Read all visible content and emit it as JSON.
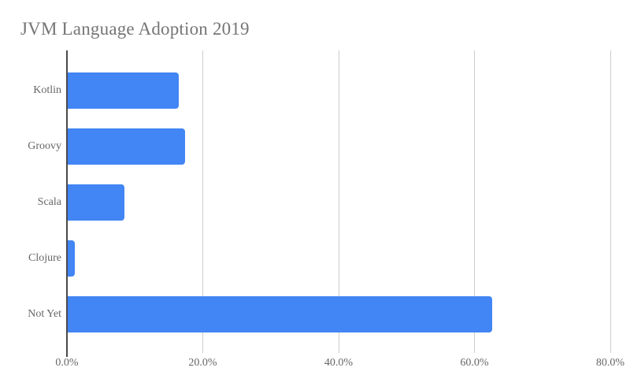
{
  "title": "JVM Language Adoption 2019",
  "colors": {
    "bar": "#4285f4",
    "baseline": "#4a4a4a",
    "gridline": "#cccccc",
    "title_text": "#757575",
    "label_text": "#666666",
    "background": "#ffffff"
  },
  "chart_data": {
    "type": "bar",
    "orientation": "horizontal",
    "title": "JVM Language Adoption 2019",
    "categories": [
      "Kotlin",
      "Groovy",
      "Scala",
      "Clojure",
      "Not Yet"
    ],
    "values": [
      16.3,
      17.3,
      8.3,
      1.0,
      62.5
    ],
    "unit": "%",
    "xlabel": "",
    "ylabel": "",
    "xlim": [
      0,
      80
    ],
    "x_ticks": [
      {
        "value": 0,
        "label": "0.0%"
      },
      {
        "value": 20,
        "label": "20.0%"
      },
      {
        "value": 40,
        "label": "40.0%"
      },
      {
        "value": 60,
        "label": "60.0%"
      },
      {
        "value": 80,
        "label": "80.0%"
      }
    ],
    "grid": true,
    "legend": "none"
  }
}
